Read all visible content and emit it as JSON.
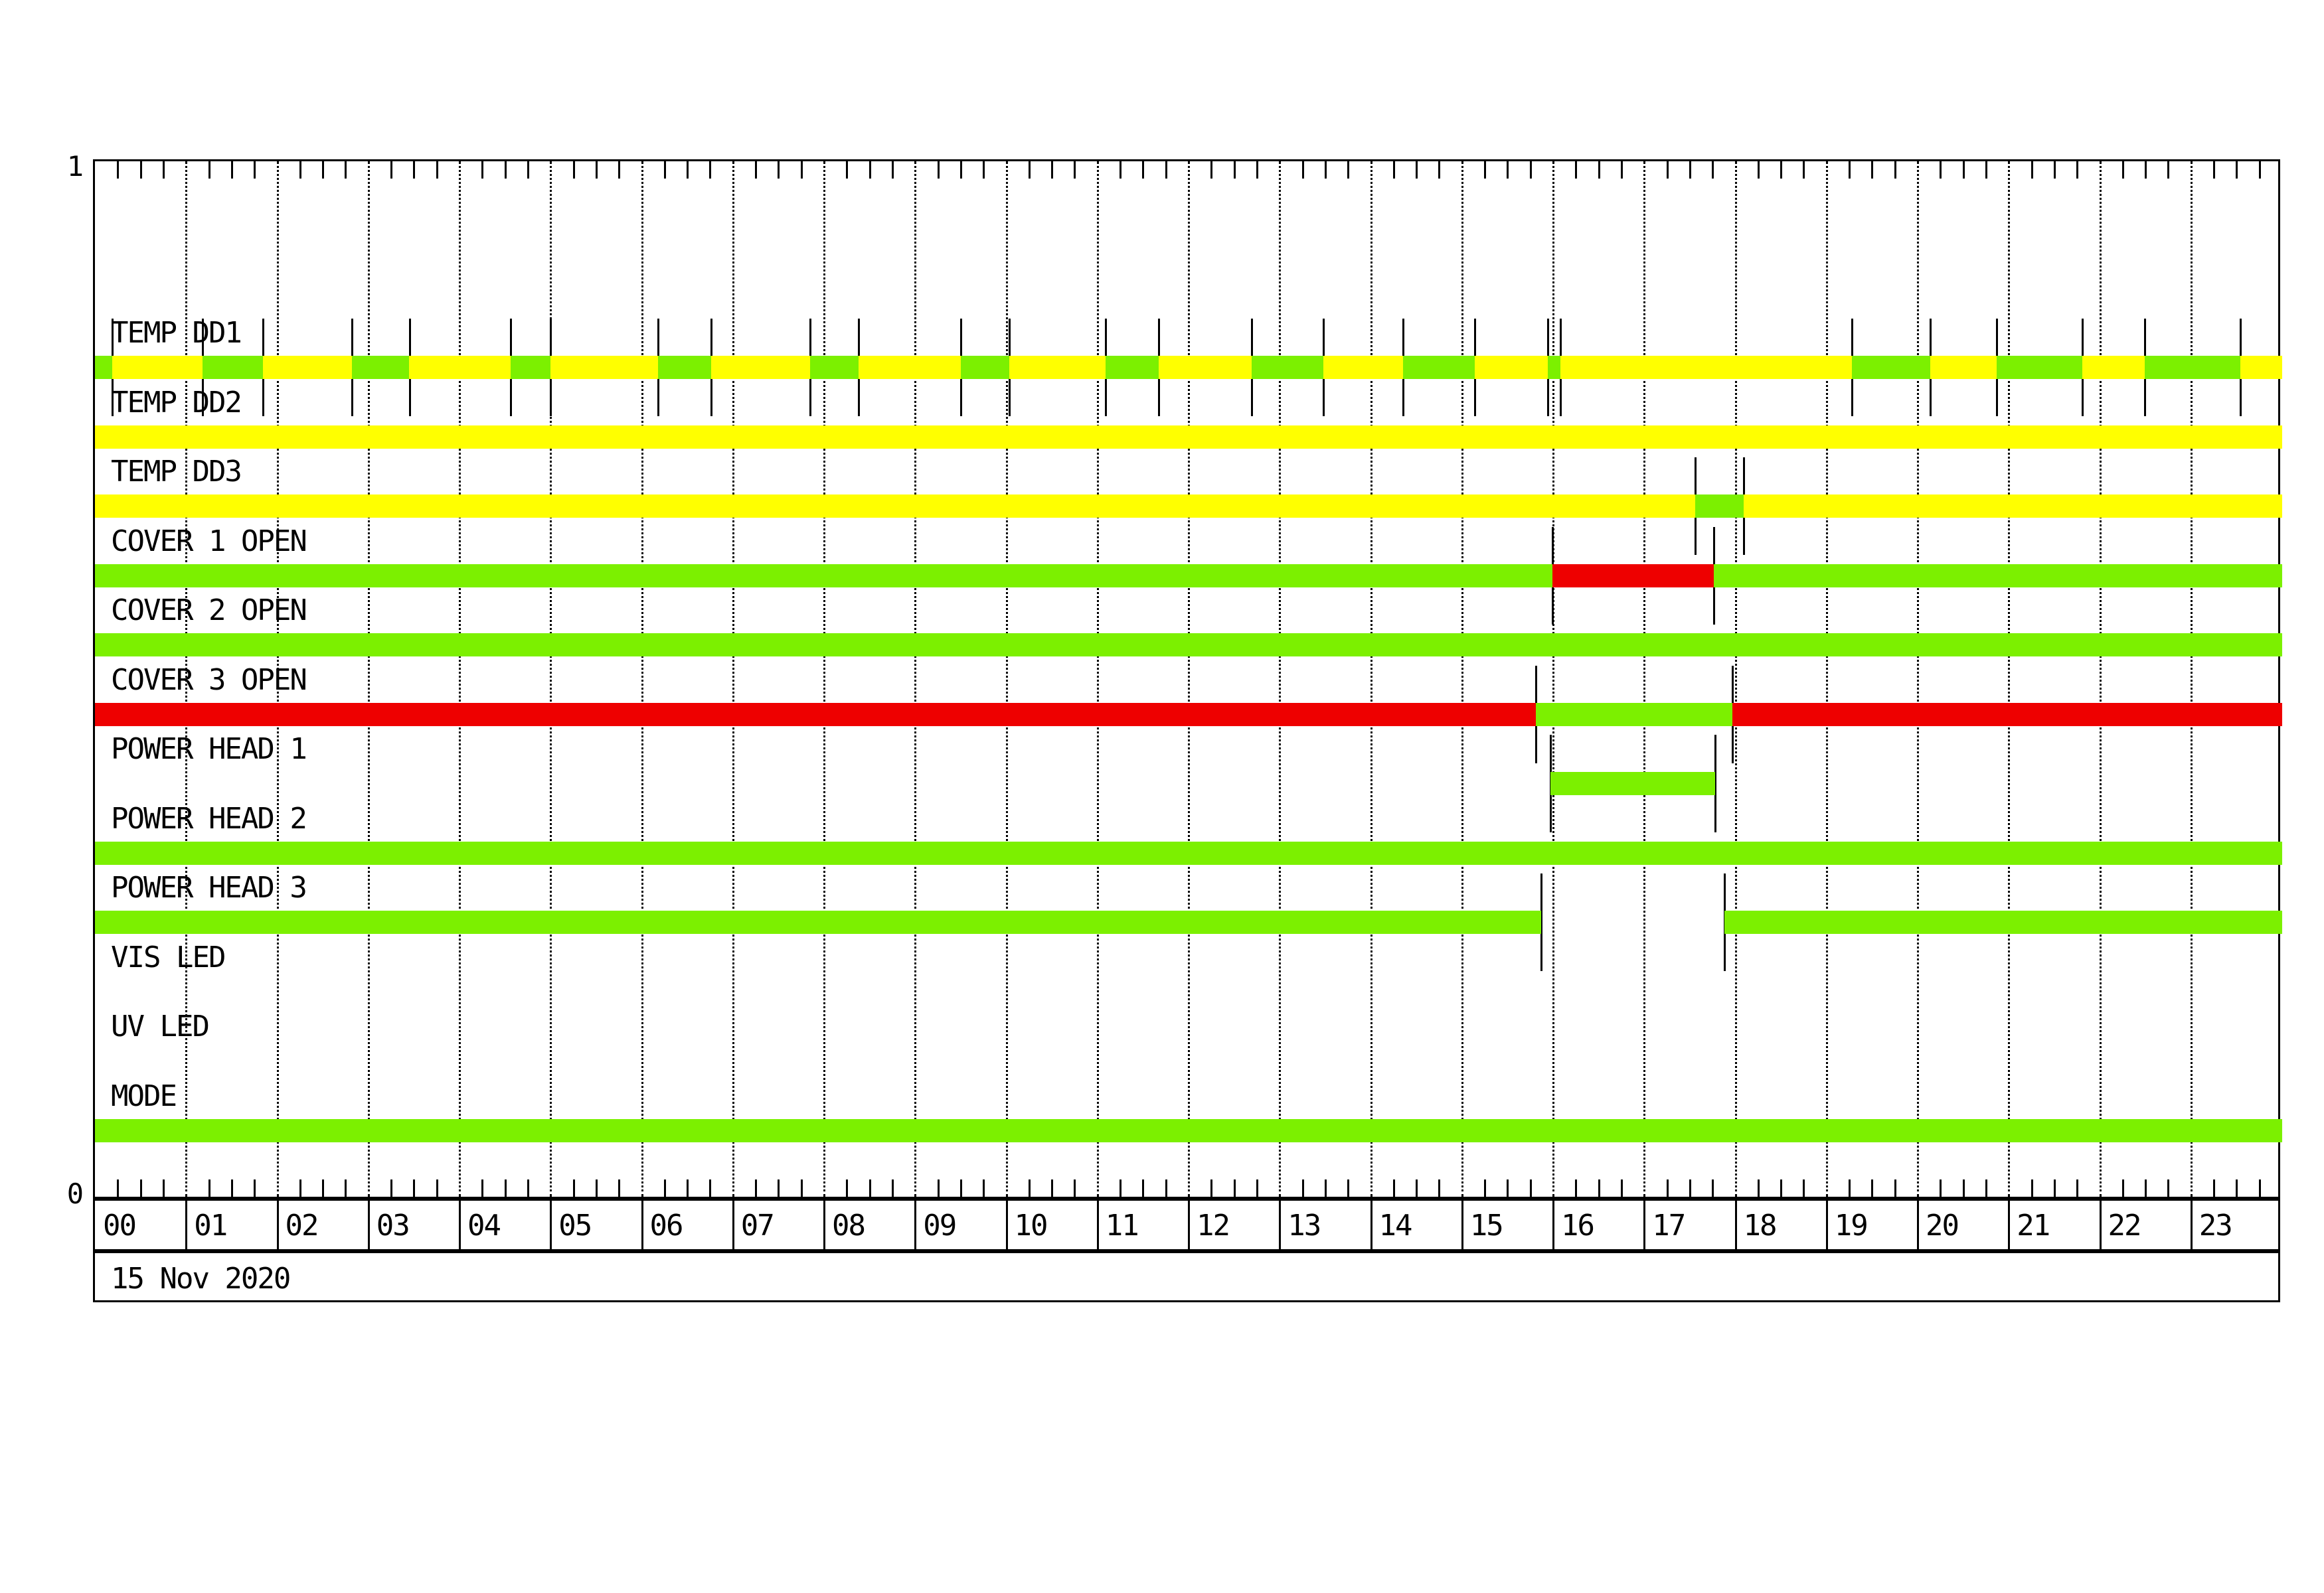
{
  "colors": {
    "yellow": "#FFFF00",
    "green": "#7CF000",
    "red": "#EE0000",
    "line": "#000000",
    "background": "#FFFFFF"
  },
  "chart_data": {
    "type": "timeline",
    "title": "",
    "date": "15 Nov 2020",
    "y_axis": {
      "top": "1",
      "bottom": "0"
    },
    "x_axis": {
      "unit": "hour of day",
      "range": [
        0,
        24
      ],
      "hour_labels": [
        "00",
        "01",
        "02",
        "03",
        "04",
        "05",
        "06",
        "07",
        "08",
        "09",
        "10",
        "11",
        "12",
        "13",
        "14",
        "15",
        "16",
        "17",
        "18",
        "19",
        "20",
        "21",
        "22",
        "23"
      ],
      "minor_tick_minutes": 15,
      "gridlines": "dotted at every hour"
    },
    "legend_note": "bars encode device status by color; thin vertical spikes mark state transitions",
    "rows": [
      {
        "label": "TEMP DD1",
        "base": {
          "color": "yellow",
          "intervals": [
            [
              0,
              24
            ]
          ]
        },
        "overlays": [
          {
            "color": "green",
            "interval": [
              0,
              0.19
            ]
          },
          {
            "color": "green",
            "interval": [
              1.18,
              1.84
            ]
          },
          {
            "color": "green",
            "interval": [
              2.82,
              3.45
            ]
          },
          {
            "color": "green",
            "interval": [
              4.56,
              5.0
            ]
          },
          {
            "color": "green",
            "interval": [
              6.18,
              6.76
            ]
          },
          {
            "color": "green",
            "interval": [
              7.85,
              8.38
            ]
          },
          {
            "color": "green",
            "interval": [
              9.5,
              10.03
            ]
          },
          {
            "color": "green",
            "interval": [
              11.09,
              11.67
            ]
          },
          {
            "color": "green",
            "interval": [
              12.69,
              13.48
            ]
          },
          {
            "color": "green",
            "interval": [
              14.35,
              15.14
            ]
          },
          {
            "color": "green",
            "interval": [
              15.94,
              16.08
            ]
          },
          {
            "color": "green",
            "interval": [
              19.28,
              20.14
            ]
          },
          {
            "color": "green",
            "interval": [
              20.87,
              21.81
            ]
          },
          {
            "color": "green",
            "interval": [
              22.49,
              23.54
            ]
          }
        ]
      },
      {
        "label": "TEMP DD2",
        "base": {
          "color": "yellow",
          "intervals": [
            [
              0,
              24
            ]
          ]
        },
        "overlays": []
      },
      {
        "label": "TEMP DD3",
        "base": {
          "color": "yellow",
          "intervals": [
            [
              0,
              24
            ]
          ]
        },
        "overlays": [
          {
            "color": "green",
            "interval": [
              17.56,
              18.09
            ]
          }
        ]
      },
      {
        "label": "COVER 1 OPEN",
        "base": {
          "color": "green",
          "intervals": [
            [
              0,
              24
            ]
          ]
        },
        "overlays": [
          {
            "color": "red",
            "interval": [
              15.99,
              17.76
            ]
          }
        ]
      },
      {
        "label": "COVER 2 OPEN",
        "base": {
          "color": "green",
          "intervals": [
            [
              0,
              24
            ]
          ]
        },
        "overlays": []
      },
      {
        "label": "COVER 3 OPEN",
        "base": {
          "color": "red",
          "intervals": [
            [
              0,
              24
            ]
          ]
        },
        "overlays": [
          {
            "color": "green",
            "interval": [
              15.81,
              17.97
            ]
          }
        ]
      },
      {
        "label": "POWER HEAD 1",
        "base": null,
        "overlays": [
          {
            "color": "green",
            "interval": [
              15.97,
              17.78
            ]
          }
        ]
      },
      {
        "label": "POWER HEAD 2",
        "base": {
          "color": "green",
          "intervals": [
            [
              0,
              24
            ]
          ]
        },
        "overlays": []
      },
      {
        "label": "POWER HEAD 3",
        "base": {
          "color": "green",
          "intervals": [
            [
              0,
              15.87
            ],
            [
              17.88,
              24
            ]
          ]
        },
        "overlays": []
      },
      {
        "label": "VIS LED",
        "base": null,
        "overlays": []
      },
      {
        "label": "UV LED",
        "base": null,
        "overlays": []
      },
      {
        "label": "MODE",
        "base": {
          "color": "green",
          "intervals": [
            [
              0,
              24
            ]
          ]
        },
        "overlays": []
      }
    ]
  }
}
